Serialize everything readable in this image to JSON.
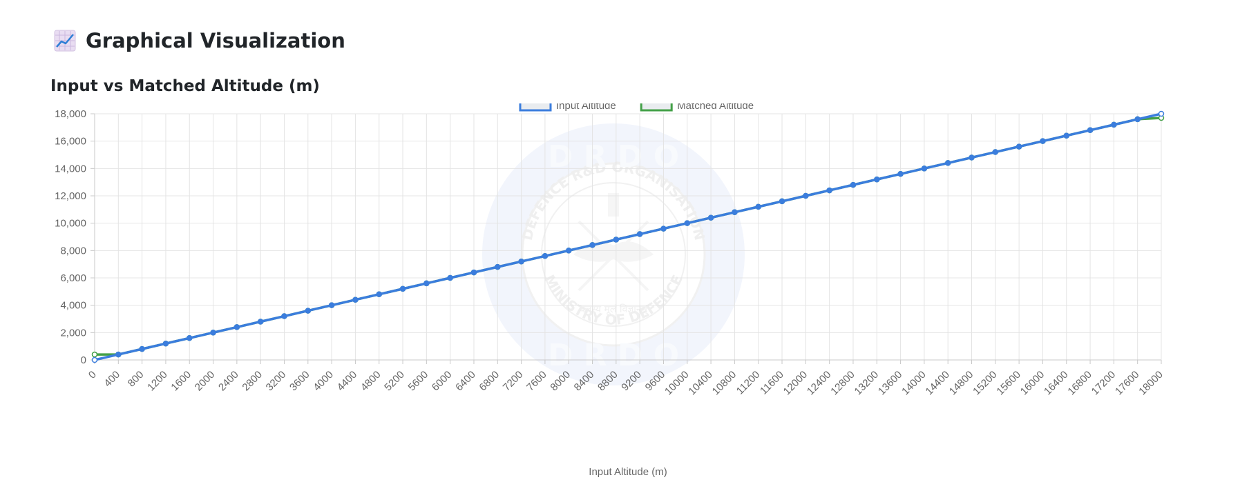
{
  "page": {
    "title": "Graphical Visualization",
    "subtitle": "Input vs Matched Altitude (m)",
    "title_icon": "chart-line-icon"
  },
  "watermark": {
    "top_text": "D R D O",
    "bottom_text": "D R D O",
    "ring_top": "DEFENCE R&D ORGANISATION",
    "ring_bottom": "MINISTRY OF DEFENCE",
    "motto": "बलस्य मूलं विज्ञानम्",
    "icon": "drdo-emblem-icon"
  },
  "chart_data": {
    "type": "line",
    "title": "",
    "xlabel": "Input Altitude (m)",
    "ylabel": "",
    "ylim": [
      0,
      18000
    ],
    "yticks": [
      0,
      2000,
      4000,
      6000,
      8000,
      10000,
      12000,
      14000,
      16000,
      18000
    ],
    "ytick_labels": [
      "0",
      "2,000",
      "4,000",
      "6,000",
      "8,000",
      "10,000",
      "12,000",
      "14,000",
      "16,000",
      "18,000"
    ],
    "grid": true,
    "legend_position": "top-center",
    "x": [
      0,
      400,
      800,
      1200,
      1600,
      2000,
      2400,
      2800,
      3200,
      3600,
      4000,
      4400,
      4800,
      5200,
      5600,
      6000,
      6400,
      6800,
      7200,
      7600,
      8000,
      8400,
      8800,
      9200,
      9600,
      10000,
      10400,
      10800,
      11200,
      11600,
      12000,
      12400,
      12800,
      13200,
      13600,
      14000,
      14400,
      14800,
      15200,
      15600,
      16000,
      16400,
      16800,
      17200,
      17600,
      18000
    ],
    "series": [
      {
        "name": "Input Altitude",
        "color": "#3b7ddd",
        "values": [
          0,
          400,
          800,
          1200,
          1600,
          2000,
          2400,
          2800,
          3200,
          3600,
          4000,
          4400,
          4800,
          5200,
          5600,
          6000,
          6400,
          6800,
          7200,
          7600,
          8000,
          8400,
          8800,
          9200,
          9600,
          10000,
          10400,
          10800,
          11200,
          11600,
          12000,
          12400,
          12800,
          13200,
          13600,
          14000,
          14400,
          14800,
          15200,
          15600,
          16000,
          16400,
          16800,
          17200,
          17600,
          18000
        ]
      },
      {
        "name": "Matched Altitude",
        "color": "#43a047",
        "values": [
          400,
          400,
          800,
          1200,
          1600,
          2000,
          2400,
          2800,
          3200,
          3600,
          4000,
          4400,
          4800,
          5200,
          5600,
          6000,
          6400,
          6800,
          7200,
          7600,
          8000,
          8400,
          8800,
          9200,
          9600,
          10000,
          10400,
          10800,
          11200,
          11600,
          12000,
          12400,
          12800,
          13200,
          13600,
          14000,
          14400,
          14800,
          15200,
          15600,
          16000,
          16400,
          16800,
          17200,
          17600,
          17700
        ]
      }
    ]
  }
}
